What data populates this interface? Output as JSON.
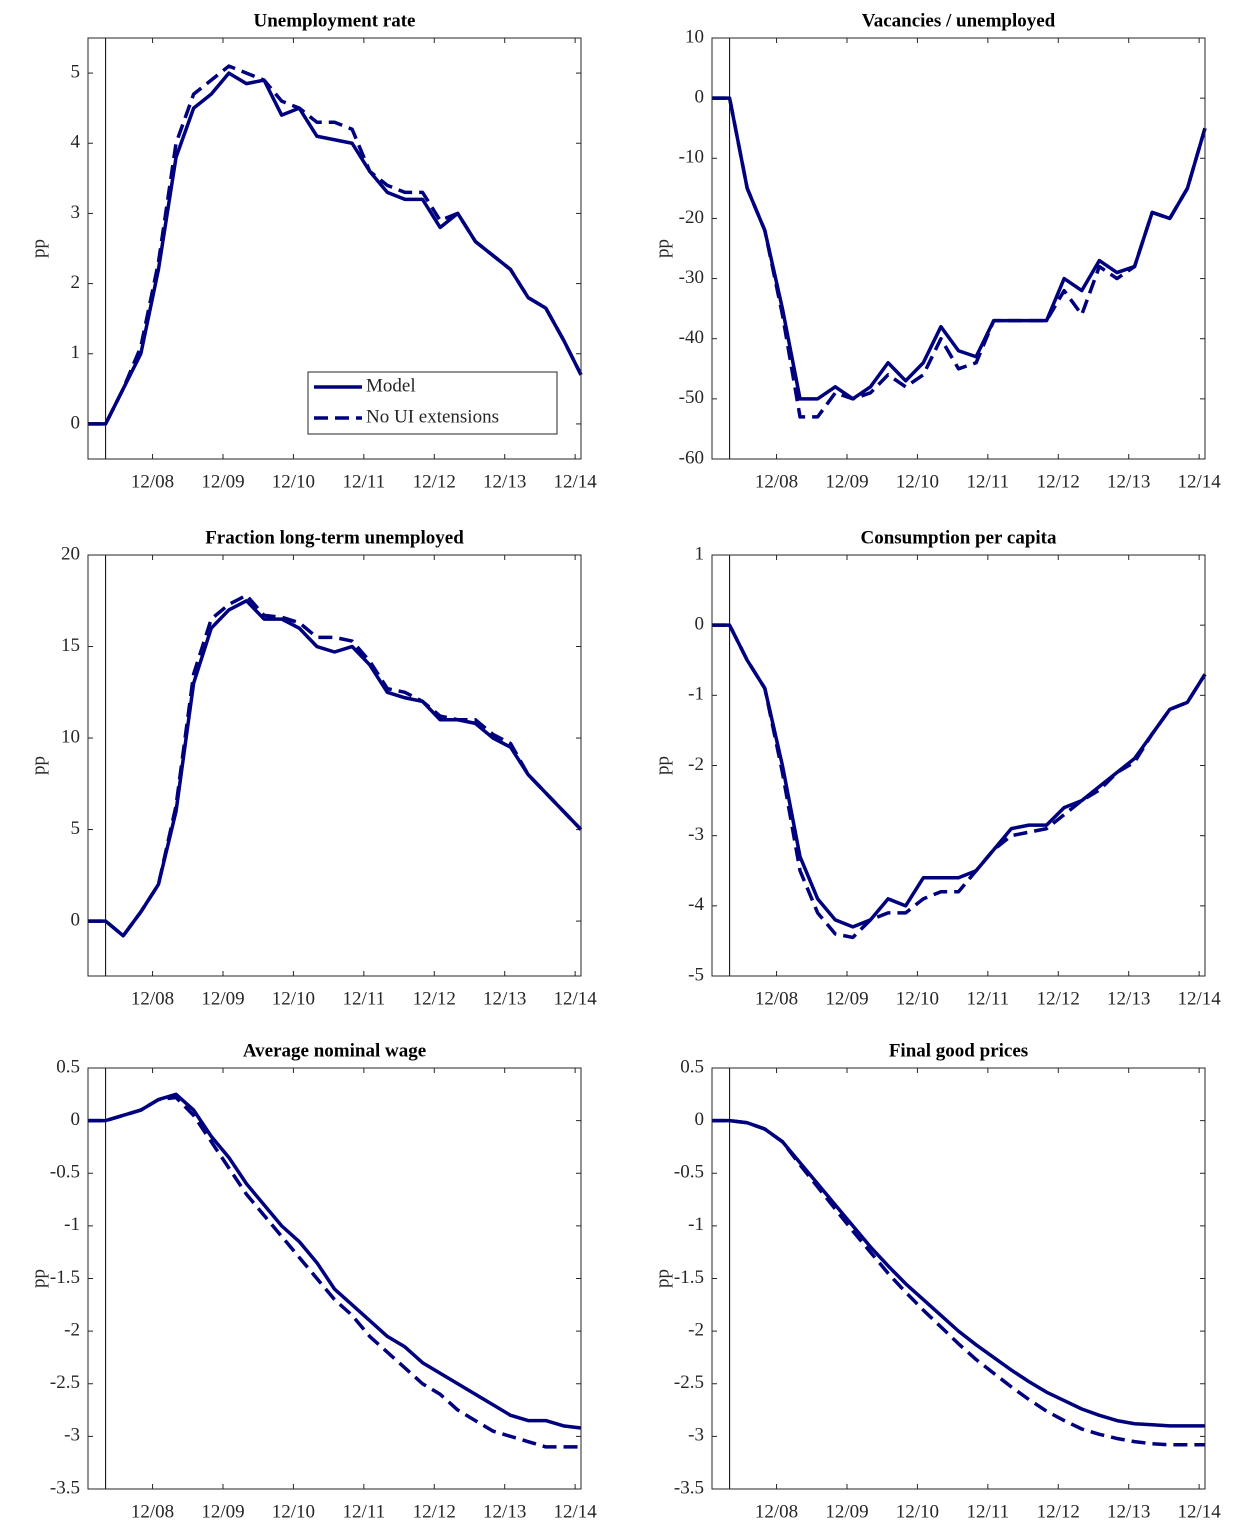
{
  "chart_data": [
    {
      "type": "line",
      "title": "Unemployment rate",
      "ylabel": "pp",
      "x": [
        0,
        3,
        6,
        9,
        12,
        15,
        18,
        21,
        24,
        27,
        30,
        33,
        36,
        39,
        42,
        45,
        48,
        51,
        54,
        57,
        60,
        63,
        66,
        69,
        72,
        75,
        78,
        81,
        84
      ],
      "series": [
        {
          "name": "Model",
          "color": "#00007f",
          "linestyle": "solid",
          "values": [
            0,
            0,
            0.5,
            1.0,
            2.2,
            3.8,
            4.5,
            4.7,
            5.0,
            4.85,
            4.9,
            4.4,
            4.5,
            4.1,
            4.05,
            4.0,
            3.6,
            3.3,
            3.2,
            3.2,
            2.8,
            3.0,
            2.6,
            2.4,
            2.2,
            1.8,
            1.65,
            1.2,
            0.7
          ]
        },
        {
          "name": "No UI extensions",
          "color": "#00007f",
          "linestyle": "dashed",
          "values": [
            0,
            0,
            0.5,
            1.1,
            2.3,
            4.0,
            4.7,
            4.9,
            5.1,
            5.0,
            4.9,
            4.6,
            4.5,
            4.3,
            4.3,
            4.2,
            3.6,
            3.4,
            3.3,
            3.3,
            2.9,
            3.0,
            2.6,
            2.4,
            2.2,
            1.8,
            1.65,
            1.2,
            0.7
          ]
        }
      ],
      "xlim": [
        0,
        84
      ],
      "xticks": [
        {
          "value": 11,
          "label": "12/08"
        },
        {
          "value": 23,
          "label": "12/09"
        },
        {
          "value": 35,
          "label": "12/10"
        },
        {
          "value": 47,
          "label": "12/11"
        },
        {
          "value": 59,
          "label": "12/12"
        },
        {
          "value": 71,
          "label": "12/13"
        },
        {
          "value": 83,
          "label": "12/14"
        }
      ],
      "ylim": [
        -0.5,
        5.5
      ],
      "yticks": [
        0,
        1,
        2,
        3,
        4,
        5
      ],
      "vline": 3,
      "legend": "lower right"
    },
    {
      "type": "line",
      "title": "Vacancies / unemployed",
      "ylabel": "pp",
      "x": [
        0,
        3,
        6,
        9,
        12,
        15,
        18,
        21,
        24,
        27,
        30,
        33,
        36,
        39,
        42,
        45,
        48,
        51,
        54,
        57,
        60,
        63,
        66,
        69,
        72,
        75,
        78,
        81,
        84
      ],
      "series": [
        {
          "color": "#00007f",
          "linestyle": "solid",
          "values": [
            0,
            0,
            -15,
            -22,
            -35,
            -50,
            -50,
            -48,
            -50,
            -48,
            -44,
            -47,
            -44,
            -38,
            -42,
            -43,
            -37,
            -37,
            -37,
            -37,
            -30,
            -32,
            -27,
            -29,
            -28,
            -19,
            -20,
            -15,
            -5
          ]
        },
        {
          "color": "#00007f",
          "linestyle": "dashed",
          "values": [
            0,
            0,
            -15,
            -22,
            -36,
            -53,
            -53,
            -49,
            -50,
            -49,
            -46,
            -48,
            -46,
            -40,
            -45,
            -44,
            -37,
            -37,
            -37,
            -37,
            -32,
            -36,
            -28,
            -30,
            -28,
            -19,
            -20,
            -15,
            -5
          ]
        }
      ],
      "xlim": [
        0,
        84
      ],
      "xticks": [
        {
          "value": 11,
          "label": "12/08"
        },
        {
          "value": 23,
          "label": "12/09"
        },
        {
          "value": 35,
          "label": "12/10"
        },
        {
          "value": 47,
          "label": "12/11"
        },
        {
          "value": 59,
          "label": "12/12"
        },
        {
          "value": 71,
          "label": "12/13"
        },
        {
          "value": 83,
          "label": "12/14"
        }
      ],
      "ylim": [
        -60,
        10
      ],
      "yticks": [
        -60,
        -50,
        -40,
        -30,
        -20,
        -10,
        0,
        10
      ],
      "vline": 3
    },
    {
      "type": "line",
      "title": "Fraction long-term unemployed",
      "ylabel": "pp",
      "x": [
        0,
        3,
        6,
        9,
        12,
        15,
        18,
        21,
        24,
        27,
        30,
        33,
        36,
        39,
        42,
        45,
        48,
        51,
        54,
        57,
        60,
        63,
        66,
        69,
        72,
        75,
        78,
        81,
        84
      ],
      "series": [
        {
          "color": "#00007f",
          "linestyle": "solid",
          "values": [
            0,
            0,
            -0.8,
            0.5,
            2,
            6,
            13,
            16,
            17,
            17.5,
            16.5,
            16.5,
            16,
            15,
            14.7,
            15,
            14,
            12.5,
            12.2,
            12,
            11,
            11,
            10.8,
            10,
            9.5,
            8,
            7,
            6,
            5
          ]
        },
        {
          "color": "#00007f",
          "linestyle": "dashed",
          "values": [
            0,
            0,
            -0.8,
            0.5,
            2,
            6.3,
            13.5,
            16.5,
            17.3,
            17.8,
            16.7,
            16.6,
            16.3,
            15.5,
            15.5,
            15.3,
            14.2,
            12.7,
            12.5,
            12,
            11.2,
            11,
            11,
            10.2,
            9.7,
            8,
            7,
            6,
            5
          ]
        }
      ],
      "xlim": [
        0,
        84
      ],
      "xticks": [
        {
          "value": 11,
          "label": "12/08"
        },
        {
          "value": 23,
          "label": "12/09"
        },
        {
          "value": 35,
          "label": "12/10"
        },
        {
          "value": 47,
          "label": "12/11"
        },
        {
          "value": 59,
          "label": "12/12"
        },
        {
          "value": 71,
          "label": "12/13"
        },
        {
          "value": 83,
          "label": "12/14"
        }
      ],
      "ylim": [
        -3,
        20
      ],
      "yticks": [
        0,
        5,
        10,
        15,
        20
      ],
      "vline": 3
    },
    {
      "type": "line",
      "title": "Consumption per capita",
      "ylabel": "pp",
      "x": [
        0,
        3,
        6,
        9,
        12,
        15,
        18,
        21,
        24,
        27,
        30,
        33,
        36,
        39,
        42,
        45,
        48,
        51,
        54,
        57,
        60,
        63,
        66,
        69,
        72,
        75,
        78,
        81,
        84
      ],
      "series": [
        {
          "color": "#00007f",
          "linestyle": "solid",
          "values": [
            0,
            0,
            -0.5,
            -0.9,
            -2,
            -3.3,
            -3.9,
            -4.2,
            -4.3,
            -4.2,
            -3.9,
            -4.0,
            -3.6,
            -3.6,
            -3.6,
            -3.5,
            -3.2,
            -2.9,
            -2.85,
            -2.85,
            -2.6,
            -2.5,
            -2.3,
            -2.1,
            -1.9,
            -1.55,
            -1.2,
            -1.1,
            -0.7
          ]
        },
        {
          "color": "#00007f",
          "linestyle": "dashed",
          "values": [
            0,
            0,
            -0.5,
            -0.9,
            -2.1,
            -3.5,
            -4.1,
            -4.4,
            -4.45,
            -4.2,
            -4.1,
            -4.1,
            -3.9,
            -3.8,
            -3.8,
            -3.5,
            -3.2,
            -3.0,
            -2.95,
            -2.9,
            -2.7,
            -2.5,
            -2.35,
            -2.1,
            -1.95,
            -1.55,
            -1.2,
            -1.1,
            -0.7
          ]
        }
      ],
      "xlim": [
        0,
        84
      ],
      "xticks": [
        {
          "value": 11,
          "label": "12/08"
        },
        {
          "value": 23,
          "label": "12/09"
        },
        {
          "value": 35,
          "label": "12/10"
        },
        {
          "value": 47,
          "label": "12/11"
        },
        {
          "value": 59,
          "label": "12/12"
        },
        {
          "value": 71,
          "label": "12/13"
        },
        {
          "value": 83,
          "label": "12/14"
        }
      ],
      "ylim": [
        -5,
        1
      ],
      "yticks": [
        -5,
        -4,
        -3,
        -2,
        -1,
        0,
        1
      ],
      "vline": 3
    },
    {
      "type": "line",
      "title": "Average nominal wage",
      "ylabel": "pp",
      "x": [
        0,
        3,
        6,
        9,
        12,
        15,
        18,
        21,
        24,
        27,
        30,
        33,
        36,
        39,
        42,
        45,
        48,
        51,
        54,
        57,
        60,
        63,
        66,
        69,
        72,
        75,
        78,
        81,
        84
      ],
      "series": [
        {
          "color": "#00007f",
          "linestyle": "solid",
          "values": [
            0,
            0,
            0.05,
            0.1,
            0.2,
            0.25,
            0.1,
            -0.15,
            -0.35,
            -0.6,
            -0.8,
            -1.0,
            -1.15,
            -1.35,
            -1.6,
            -1.75,
            -1.9,
            -2.05,
            -2.15,
            -2.3,
            -2.4,
            -2.5,
            -2.6,
            -2.7,
            -2.8,
            -2.85,
            -2.85,
            -2.9,
            -2.92
          ]
        },
        {
          "color": "#00007f",
          "linestyle": "dashed",
          "values": [
            0,
            0,
            0.05,
            0.1,
            0.2,
            0.22,
            0.05,
            -0.2,
            -0.45,
            -0.7,
            -0.9,
            -1.1,
            -1.3,
            -1.5,
            -1.7,
            -1.85,
            -2.05,
            -2.2,
            -2.35,
            -2.5,
            -2.6,
            -2.75,
            -2.85,
            -2.95,
            -3.0,
            -3.05,
            -3.1,
            -3.1,
            -3.1
          ]
        }
      ],
      "xlim": [
        0,
        84
      ],
      "xticks": [
        {
          "value": 11,
          "label": "12/08"
        },
        {
          "value": 23,
          "label": "12/09"
        },
        {
          "value": 35,
          "label": "12/10"
        },
        {
          "value": 47,
          "label": "12/11"
        },
        {
          "value": 59,
          "label": "12/12"
        },
        {
          "value": 71,
          "label": "12/13"
        },
        {
          "value": 83,
          "label": "12/14"
        }
      ],
      "ylim": [
        -3.5,
        0.5
      ],
      "yticks": [
        -3.5,
        -3,
        -2.5,
        -2,
        -1.5,
        -1,
        -0.5,
        0,
        0.5
      ],
      "vline": 3
    },
    {
      "type": "line",
      "title": "Final good prices",
      "ylabel": "pp",
      "x": [
        0,
        3,
        6,
        9,
        12,
        15,
        18,
        21,
        24,
        27,
        30,
        33,
        36,
        39,
        42,
        45,
        48,
        51,
        54,
        57,
        60,
        63,
        66,
        69,
        72,
        75,
        78,
        81,
        84
      ],
      "series": [
        {
          "color": "#00007f",
          "linestyle": "solid",
          "values": [
            0,
            0,
            -0.02,
            -0.08,
            -0.2,
            -0.4,
            -0.6,
            -0.8,
            -1.0,
            -1.2,
            -1.38,
            -1.55,
            -1.7,
            -1.85,
            -2.0,
            -2.13,
            -2.25,
            -2.37,
            -2.48,
            -2.58,
            -2.66,
            -2.74,
            -2.8,
            -2.85,
            -2.88,
            -2.89,
            -2.9,
            -2.9,
            -2.9
          ]
        },
        {
          "color": "#00007f",
          "linestyle": "dashed",
          "values": [
            0,
            0,
            -0.02,
            -0.08,
            -0.2,
            -0.42,
            -0.63,
            -0.84,
            -1.05,
            -1.25,
            -1.45,
            -1.63,
            -1.8,
            -1.96,
            -2.12,
            -2.27,
            -2.4,
            -2.53,
            -2.65,
            -2.76,
            -2.85,
            -2.93,
            -2.98,
            -3.02,
            -3.05,
            -3.07,
            -3.08,
            -3.08,
            -3.08
          ]
        }
      ],
      "xlim": [
        0,
        84
      ],
      "xticks": [
        {
          "value": 11,
          "label": "12/08"
        },
        {
          "value": 23,
          "label": "12/09"
        },
        {
          "value": 35,
          "label": "12/10"
        },
        {
          "value": 47,
          "label": "12/11"
        },
        {
          "value": 59,
          "label": "12/12"
        },
        {
          "value": 71,
          "label": "12/13"
        },
        {
          "value": 83,
          "label": "12/14"
        }
      ],
      "ylim": [
        -3.5,
        0.5
      ],
      "yticks": [
        -3.5,
        -3,
        -2.5,
        -2,
        -1.5,
        -1,
        -0.5,
        0,
        0.5
      ],
      "vline": 3
    }
  ]
}
